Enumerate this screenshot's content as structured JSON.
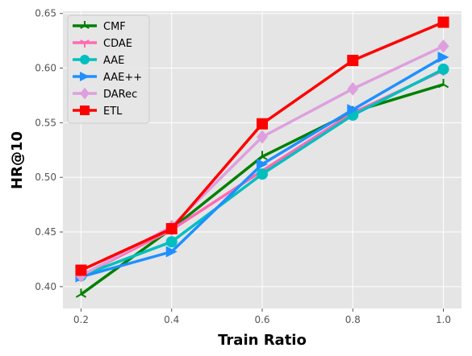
{
  "chart_data": {
    "type": "line",
    "title": "",
    "xlabel": "Train Ratio",
    "ylabel": "HR@10",
    "x": [
      0.2,
      0.4,
      0.6,
      0.8,
      1.0
    ],
    "x_ticks": [
      "0.2",
      "0.4",
      "0.6",
      "0.8",
      "1.0"
    ],
    "y_ticks": [
      "0.40",
      "0.45",
      "0.50",
      "0.55",
      "0.60",
      "0.65"
    ],
    "xlim": [
      0.16,
      1.04
    ],
    "ylim": [
      0.38,
      0.652
    ],
    "grid": true,
    "legend_position": "top-left",
    "series": [
      {
        "name": "CMF",
        "color": "#008000",
        "marker": "tri-down",
        "values": [
          0.393,
          0.453,
          0.519,
          0.56,
          0.585
        ]
      },
      {
        "name": "CDAE",
        "color": "#ff69b4",
        "marker": "tri-up",
        "values": [
          0.41,
          0.452,
          0.506,
          0.559,
          0.598
        ]
      },
      {
        "name": "AAE",
        "color": "#00bfbf",
        "marker": "circle",
        "values": [
          0.41,
          0.441,
          0.503,
          0.557,
          0.599
        ]
      },
      {
        "name": "AAE++",
        "color": "#1e90ff",
        "marker": "triangle-right",
        "values": [
          0.409,
          0.432,
          0.512,
          0.562,
          0.61
        ]
      },
      {
        "name": "DARec",
        "color": "#dda0dd",
        "marker": "diamond",
        "values": [
          0.41,
          0.455,
          0.537,
          0.581,
          0.62
        ]
      },
      {
        "name": "ETL",
        "color": "#ff0000",
        "marker": "square",
        "values": [
          0.415,
          0.453,
          0.549,
          0.607,
          0.642
        ]
      }
    ]
  }
}
